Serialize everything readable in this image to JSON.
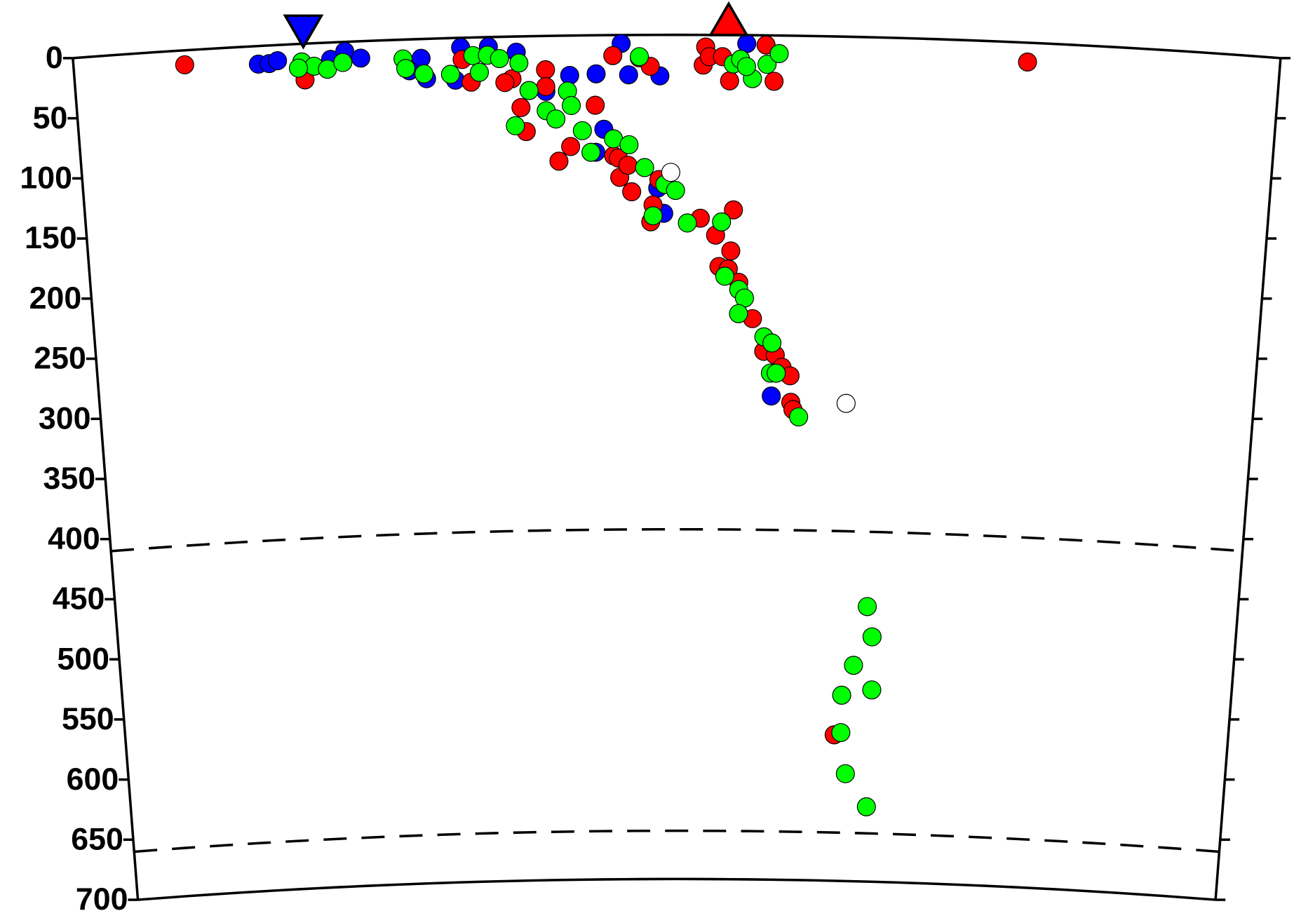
{
  "chart_data": {
    "type": "scatter",
    "xlim": [
      0,
      100
    ],
    "ylim": [
      0,
      700
    ],
    "yticks": [
      0,
      50,
      100,
      150,
      200,
      250,
      300,
      350,
      400,
      450,
      500,
      550,
      600,
      650,
      700
    ],
    "discontinuities": [
      410,
      660
    ],
    "stations": [
      {
        "x": 19.1,
        "color": "#0000ff",
        "shape": "down"
      },
      {
        "x": 54.3,
        "color": "#ff0000",
        "shape": "up"
      }
    ],
    "series": [
      {
        "color": "#0000ff",
        "x": [
          15.3,
          16.2,
          16.9,
          21.3,
          22.5,
          23.8,
          28.8,
          27.8,
          29.2,
          32.1,
          31.6,
          34.4,
          36.7,
          41.1,
          43.3,
          43.9,
          43.2,
          45.4,
          46,
          48.6,
          48.4,
          48.9,
          58.2,
          55.8,
          39.1
        ],
        "values": [
          15,
          15,
          13,
          14,
          8,
          14,
          16,
          26,
          33,
          8,
          35,
          8,
          13,
          33,
          32,
          78,
          97,
          7,
          33,
          34,
          127,
          148,
          299,
          7,
          46
        ]
      },
      {
        "color": "#ff0000",
        "x": [
          9.2,
          19.1,
          32.2,
          32.9,
          36.3,
          35.7,
          37.7,
          39.1,
          39.1,
          37,
          37.4,
          40.1,
          41.1,
          43.2,
          44.7,
          46.9,
          47.8,
          44.7,
          45.2,
          46.2,
          45.1,
          45.9,
          48,
          48.5,
          47.8,
          52,
          53.3,
          54.8,
          54.6,
          53.6,
          54.4,
          55.3,
          56.5,
          57.5,
          58.5,
          59.1,
          59.8,
          59.9,
          60.1,
          52.4,
          52.2,
          52.7,
          53.8,
          54.4,
          57.4,
          58.1,
          64.3,
          79.1
        ],
        "values": [
          12,
          30,
          18,
          37,
          35,
          38,
          45,
          28,
          42,
          59,
          79,
          104,
          92,
          58,
          17,
          19,
          26,
          100,
          118,
          130,
          102,
          108,
          141,
          120,
          155,
          152,
          166,
          145,
          179,
          192,
          194,
          205,
          235,
          262,
          265,
          275,
          282,
          304,
          310,
          10,
          25,
          18,
          18,
          38,
          8,
          38,
          579,
          16
        ]
      },
      {
        "color": "#00ff00",
        "x": [
          18.9,
          19.9,
          18.6,
          21,
          22.3,
          27.3,
          27.5,
          29,
          31.2,
          33.1,
          33.6,
          34.3,
          35.3,
          36.9,
          37.7,
          36.5,
          39.1,
          39.9,
          40.9,
          41.2,
          42.1,
          42.8,
          44.7,
          46,
          47.3,
          49,
          49.9,
          48,
          50.9,
          53.8,
          54.1,
          55.3,
          55.8,
          55.3,
          57.5,
          58.2,
          58.1,
          58.6,
          60.6,
          54.7,
          55.3,
          56.3,
          55.8,
          57.5,
          58.5,
          46.9,
          67,
          67.5,
          65.9,
          67.6,
          64.9,
          64.9,
          65.4,
          67.4
        ],
        "values": [
          15,
          19,
          20,
          22,
          17,
          16,
          24,
          29,
          30,
          15,
          29,
          15,
          18,
          22,
          45,
          74,
          62,
          69,
          46,
          58,
          79,
          97,
          86,
          91,
          110,
          124,
          129,
          150,
          156,
          155,
          200,
          211,
          218,
          231,
          250,
          255,
          280,
          280,
          316,
          24,
          20,
          36,
          26,
          24,
          15,
          18,
          472,
          497,
          521,
          541,
          546,
          577,
          611,
          638
        ]
      },
      {
        "color": "#ffffff",
        "x": [
          49.5,
          64.7
        ],
        "values": [
          114,
          304
        ]
      }
    ]
  }
}
